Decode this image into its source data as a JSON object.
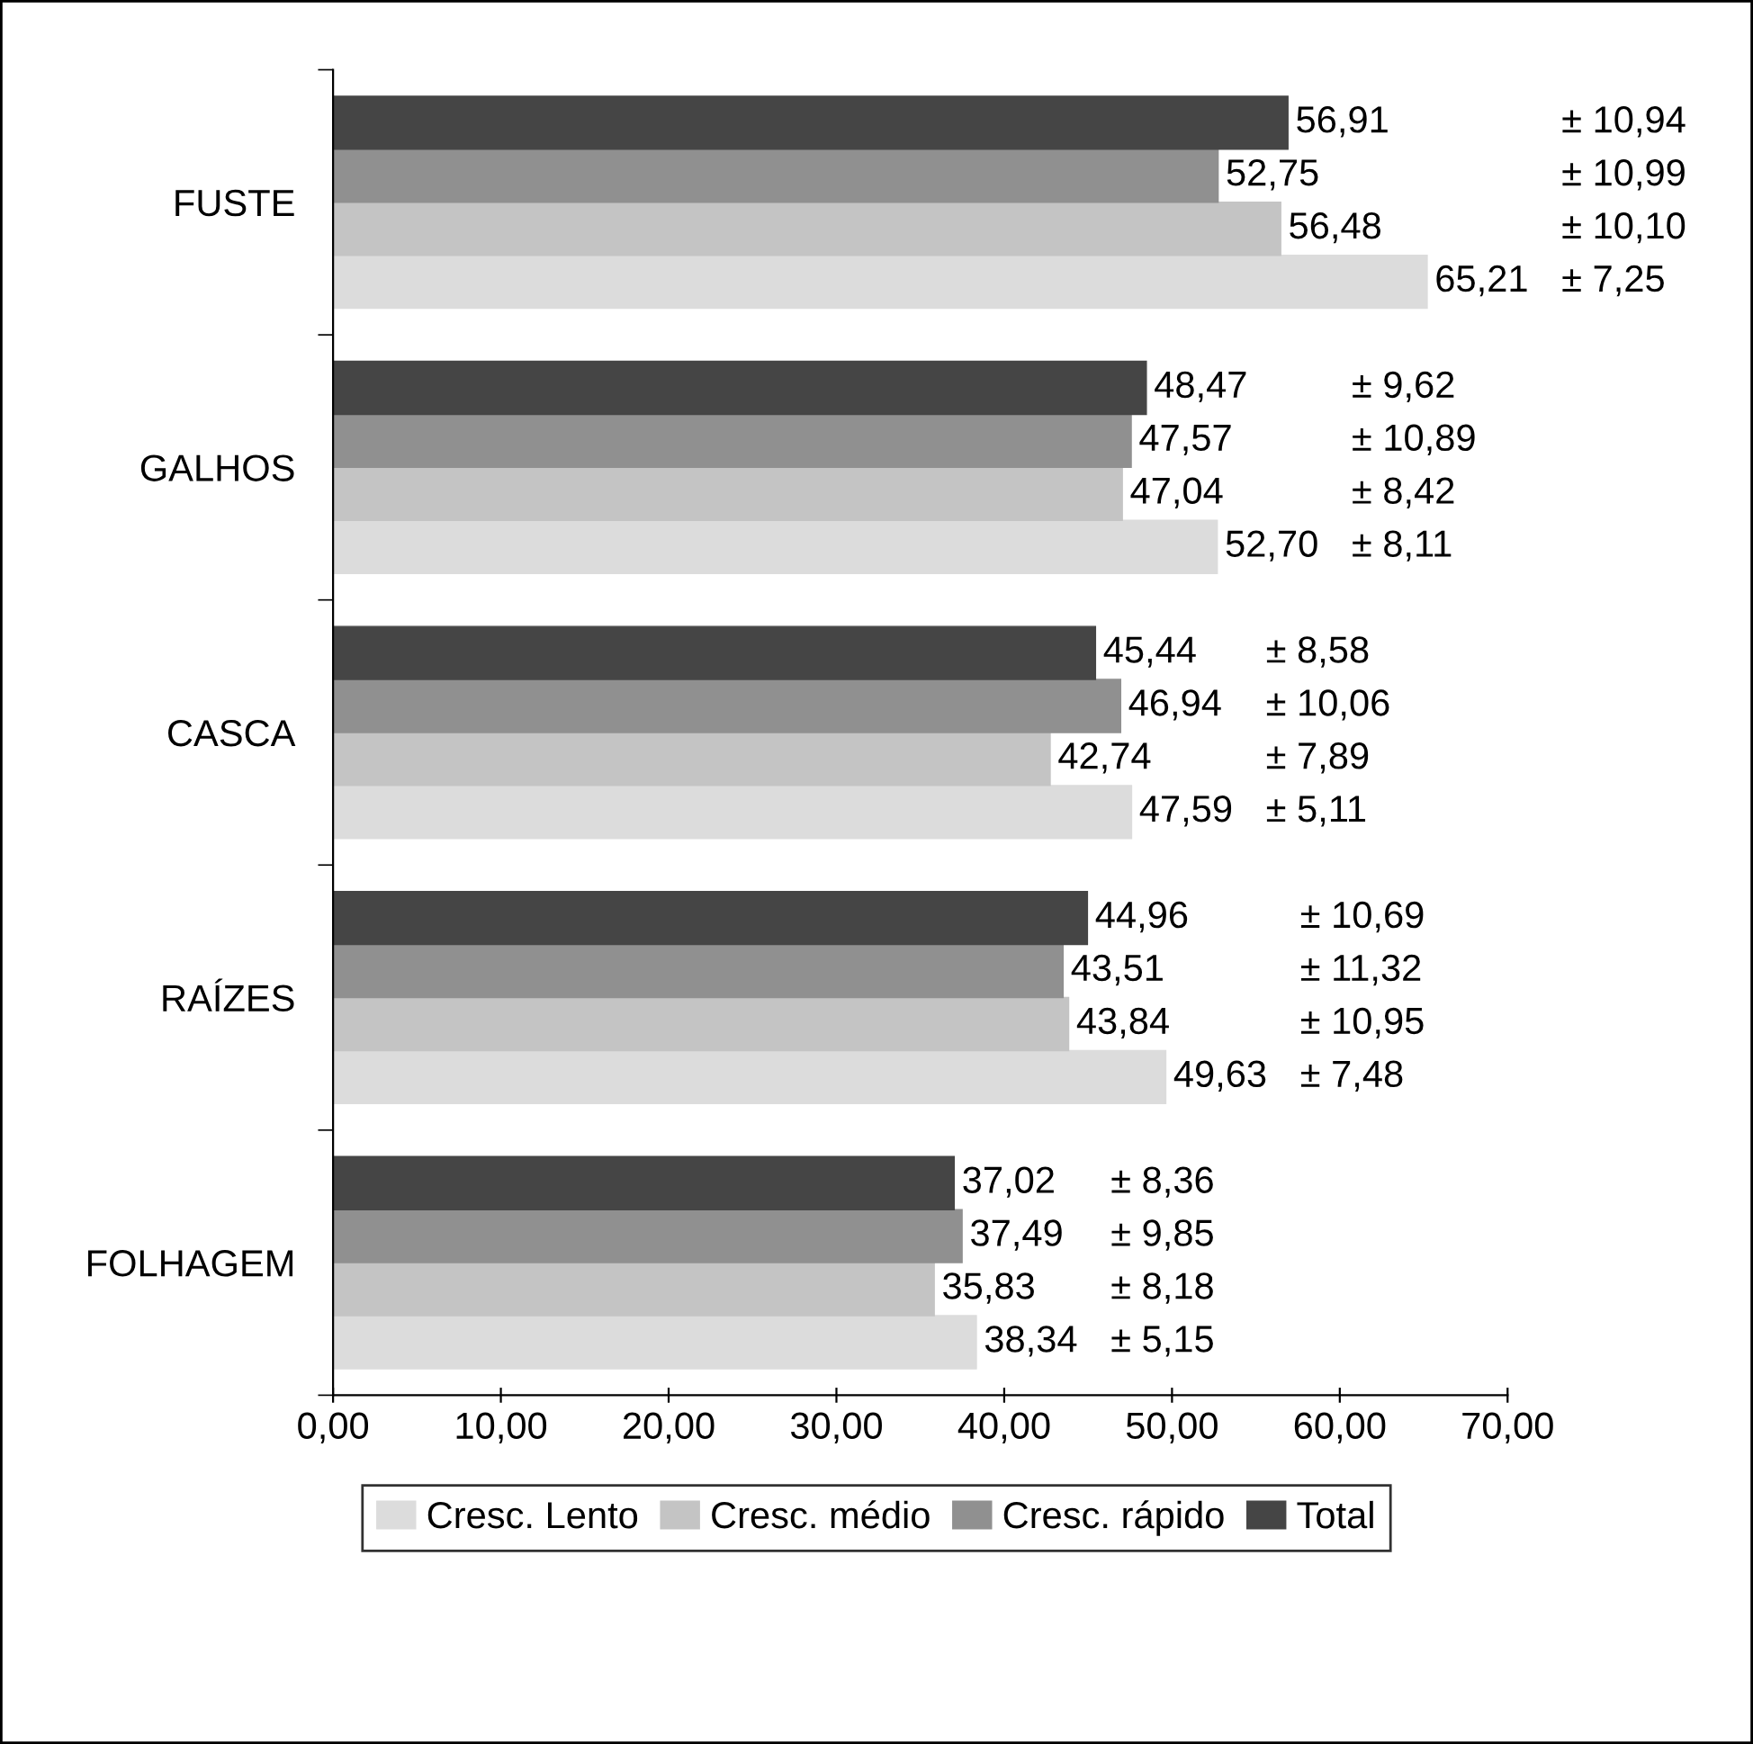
{
  "chart_data": {
    "type": "bar",
    "orientation": "horizontal",
    "categories": [
      "FUSTE",
      "GALHOS",
      "CASCA",
      "RAÍZES",
      "FOLHAGEM"
    ],
    "series": [
      {
        "name": "Cresc. Lento",
        "color": "#dcdcdc",
        "values": [
          65.21,
          52.7,
          47.59,
          49.63,
          38.34
        ],
        "value_labels": [
          "65,21",
          "52,70",
          "47,59",
          "49,63",
          "38,34"
        ]
      },
      {
        "name": "Cresc. médio",
        "color": "#c4c4c4",
        "values": [
          56.48,
          47.04,
          42.74,
          43.84,
          35.83
        ],
        "value_labels": [
          "56,48",
          "47,04",
          "42,74",
          "43,84",
          "35,83"
        ]
      },
      {
        "name": "Cresc. rápido",
        "color": "#909090",
        "values": [
          52.75,
          47.57,
          46.94,
          43.51,
          37.49
        ],
        "value_labels": [
          "52,75",
          "47,57",
          "46,94",
          "43,51",
          "37,49"
        ]
      },
      {
        "name": "Total",
        "color": "#454545",
        "values": [
          56.91,
          48.47,
          45.44,
          44.96,
          37.02
        ],
        "value_labels": [
          "56,91",
          "48,47",
          "45,44",
          "44,96",
          "37,02"
        ]
      }
    ],
    "xlim": [
      0,
      70
    ],
    "xticks": [
      {
        "value": 0,
        "label": "0,00"
      },
      {
        "value": 10,
        "label": "10,00"
      },
      {
        "value": 20,
        "label": "20,00"
      },
      {
        "value": 30,
        "label": "30,00"
      },
      {
        "value": 40,
        "label": "40,00"
      },
      {
        "value": 50,
        "label": "50,00"
      },
      {
        "value": 60,
        "label": "60,00"
      },
      {
        "value": 70,
        "label": "70,00"
      }
    ],
    "grid": false,
    "legend": "bottom",
    "annotations": [
      "± 10,94",
      "± 10,99",
      "± 10,10",
      "± 7,25",
      "± 9,62",
      "± 10,89",
      "± 8,42",
      "± 8,11",
      "± 8,58",
      "± 10,06",
      "± 7,89",
      "± 5,11",
      "± 10,69",
      "± 11,32",
      "± 10,95",
      "± 7,48",
      "± 8,36",
      "± 9,85",
      "± 8,18",
      "± 5,15"
    ]
  }
}
